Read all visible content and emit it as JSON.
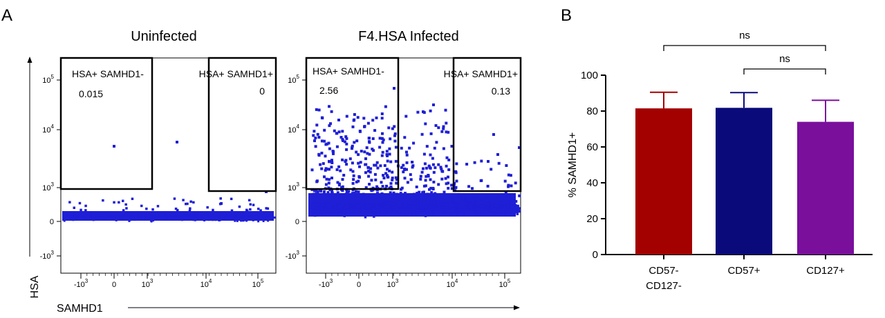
{
  "panels": {
    "a": {
      "letter": "A"
    },
    "b": {
      "letter": "B"
    }
  },
  "flow": {
    "x_axis_label": "SAMHD1",
    "y_axis_label": "HSA",
    "x_ticks": [
      {
        "base": "-10",
        "exp": "3"
      },
      {
        "base": "0",
        "exp": ""
      },
      {
        "base": "10",
        "exp": "3"
      },
      {
        "base": "10",
        "exp": "4"
      },
      {
        "base": "10",
        "exp": "5"
      }
    ],
    "y_ticks": [
      {
        "base": "10",
        "exp": "5"
      },
      {
        "base": "10",
        "exp": "4"
      },
      {
        "base": "10",
        "exp": "3"
      },
      {
        "base": "0",
        "exp": ""
      },
      {
        "base": "-10",
        "exp": "3"
      }
    ],
    "plots": [
      {
        "title": "Uninfected",
        "gates": [
          {
            "label": "HSA+ SAMHD1-",
            "value": "0.015"
          },
          {
            "label": "HSA+ SAMHD1+",
            "value": "0"
          }
        ]
      },
      {
        "title": "F4.HSA Infected",
        "gates": [
          {
            "label": "HSA+ SAMHD1-",
            "value": "2.56"
          },
          {
            "label": "HSA+ SAMHD1+",
            "value": "0.13"
          }
        ]
      }
    ],
    "dot_color": "#1f1fd6"
  },
  "chart_data": {
    "type": "bar",
    "categories": [
      [
        "CD57-",
        "CD127-"
      ],
      [
        "CD57+"
      ],
      [
        "CD127+"
      ]
    ],
    "values": [
      81.5,
      81.8,
      74.0
    ],
    "errors": [
      9,
      8.5,
      12
    ],
    "colors": [
      "#a30000",
      "#0a0a7a",
      "#7a0f9c"
    ],
    "ylabel": "% SAMHD1+",
    "xlabel": "",
    "ylim": [
      0,
      100
    ],
    "yticks": [
      0,
      20,
      40,
      60,
      80,
      100
    ],
    "significance": [
      {
        "from": 0,
        "to": 2,
        "label": "ns"
      },
      {
        "from": 1,
        "to": 2,
        "label": "ns"
      }
    ]
  }
}
